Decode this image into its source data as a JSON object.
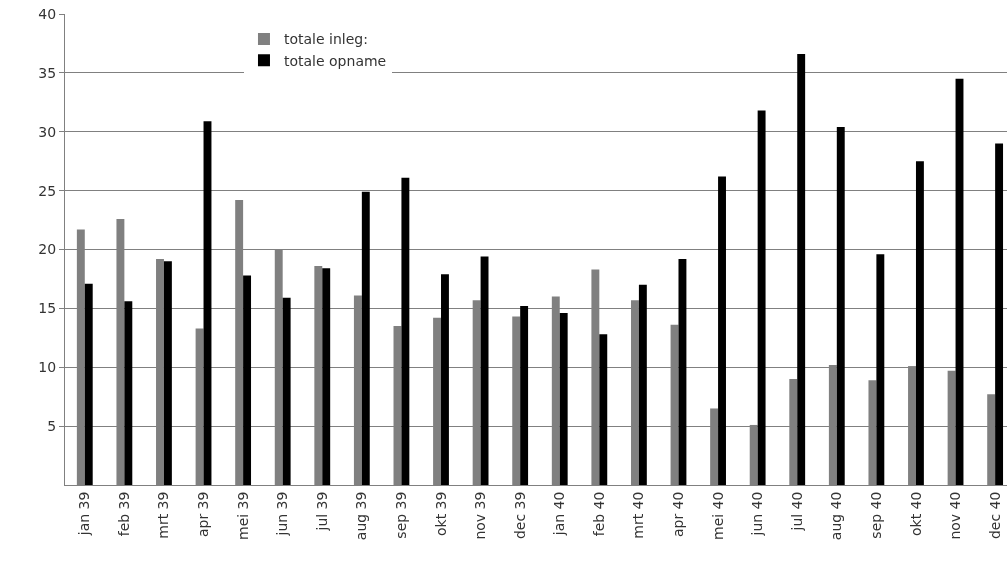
{
  "chart_data": {
    "type": "bar",
    "categories": [
      "jan 39",
      "feb 39",
      "mrt 39",
      "apr 39",
      "mei 39",
      "jun 39",
      "jul 39",
      "aug 39",
      "sep 39",
      "okt 39",
      "nov 39",
      "dec 39",
      "jan 40",
      "feb 40",
      "mrt 40",
      "apr 40",
      "mei 40",
      "jun 40",
      "jul 40",
      "aug 40",
      "sep 40",
      "okt 40",
      "nov 40",
      "dec 40"
    ],
    "series": [
      {
        "name": "totale inleg:",
        "color": "#808080",
        "values": [
          21.7,
          22.6,
          19.2,
          13.3,
          24.2,
          20.0,
          18.6,
          16.1,
          13.5,
          14.2,
          15.7,
          14.3,
          16.0,
          18.3,
          15.7,
          13.6,
          6.5,
          5.1,
          9.0,
          10.2,
          8.9,
          10.1,
          9.7,
          7.7
        ]
      },
      {
        "name": "totale opname",
        "color": "#000000",
        "values": [
          17.1,
          15.6,
          19.0,
          30.9,
          17.8,
          15.9,
          18.4,
          24.9,
          26.1,
          17.9,
          19.4,
          15.2,
          14.6,
          12.8,
          17.0,
          19.2,
          26.2,
          31.8,
          36.6,
          30.4,
          19.6,
          27.5,
          34.5,
          29.0
        ]
      }
    ],
    "ylim": [
      0,
      40
    ],
    "yticks": [
      5,
      10,
      15,
      20,
      25,
      30,
      35,
      40
    ],
    "grid": "y",
    "legend": "top"
  }
}
